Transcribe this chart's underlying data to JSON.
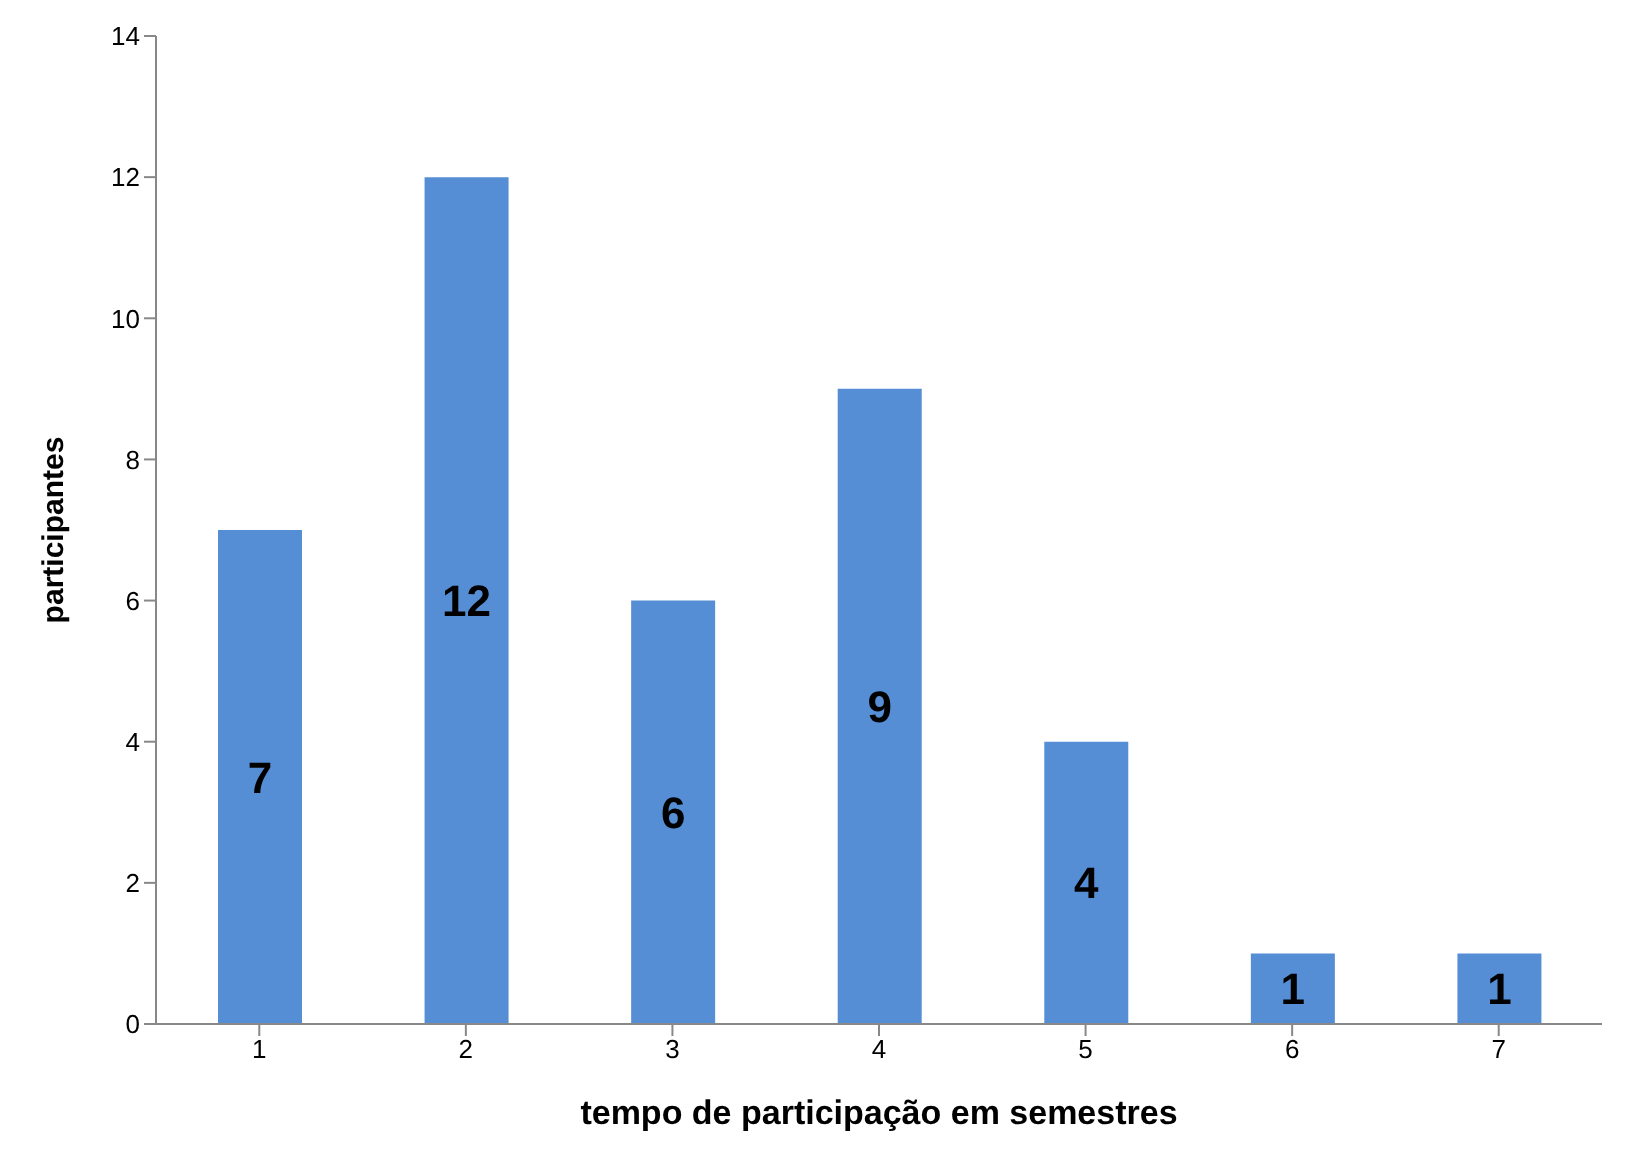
{
  "chart_data": {
    "type": "bar",
    "xlabel": "tempo de participação em semestres",
    "ylabel": "participantes",
    "categories": [
      "1",
      "2",
      "3",
      "4",
      "5",
      "6",
      "7"
    ],
    "values": [
      7,
      12,
      6,
      9,
      4,
      1,
      1
    ],
    "color": "#558ed5",
    "ylim": [
      0,
      14
    ],
    "yticks": [
      0,
      2,
      4,
      6,
      8,
      10,
      12,
      14
    ],
    "grid": false,
    "data_labels": true
  }
}
